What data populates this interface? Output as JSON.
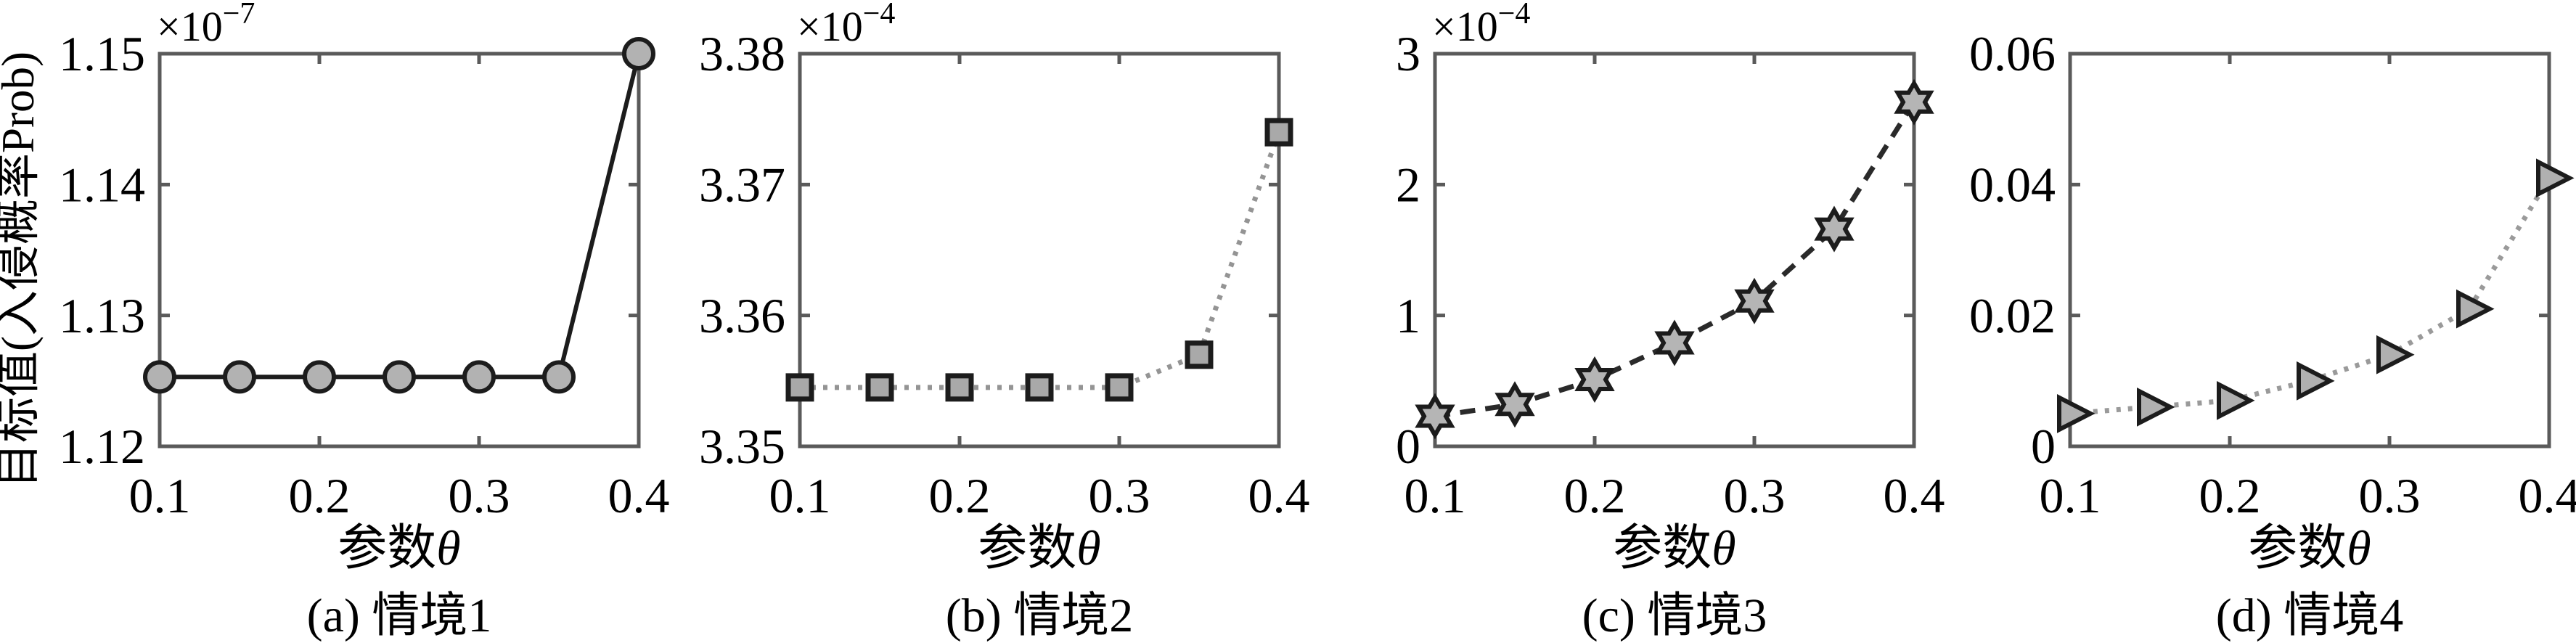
{
  "figure": {
    "background": "#ffffff",
    "y_axis_label": "目标值(入侵概率Prob)",
    "x_axis_label": "参数θ",
    "box_color": "#5a5a5a",
    "text_color": "#000000"
  },
  "chart_data": [
    {
      "type": "line",
      "caption": "(a) 情境1",
      "xlabel": "参数θ",
      "ylabel": "目标值(入侵概率Prob)",
      "exponent_multiplier": "×10",
      "exponent_power": "−7",
      "x": [
        0.1,
        0.15,
        0.2,
        0.25,
        0.3,
        0.35,
        0.4
      ],
      "y": [
        1.1253,
        1.1253,
        1.1253,
        1.1253,
        1.1253,
        1.1253,
        1.15
      ],
      "xlim": [
        0.1,
        0.4
      ],
      "ylim": [
        1.12,
        1.15
      ],
      "xtick_values": [
        0.1,
        0.2,
        0.3,
        0.4
      ],
      "xtick_labels": [
        "0.1",
        "0.2",
        "0.3",
        "0.4"
      ],
      "ytick_values": [
        1.12,
        1.13,
        1.14,
        1.15
      ],
      "ytick_labels": [
        "1.12",
        "1.13",
        "1.14",
        "1.15"
      ],
      "marker": "circle",
      "line_style": "solid",
      "line_color": "#1c1c1c",
      "marker_fill": "#b2b2b2",
      "marker_edge": "#1c1c1c"
    },
    {
      "type": "line",
      "caption": "(b) 情境2",
      "xlabel": "参数θ",
      "exponent_multiplier": "×10",
      "exponent_power": "−4",
      "x": [
        0.1,
        0.15,
        0.2,
        0.25,
        0.3,
        0.35,
        0.4
      ],
      "y": [
        3.3545,
        3.3545,
        3.3545,
        3.3545,
        3.3545,
        3.357,
        3.374
      ],
      "xlim": [
        0.1,
        0.4
      ],
      "ylim": [
        3.35,
        3.38
      ],
      "xtick_values": [
        0.1,
        0.2,
        0.3,
        0.4
      ],
      "xtick_labels": [
        "0.1",
        "0.2",
        "0.3",
        "0.4"
      ],
      "ytick_values": [
        3.35,
        3.36,
        3.37,
        3.38
      ],
      "ytick_labels": [
        "3.35",
        "3.36",
        "3.37",
        "3.38"
      ],
      "marker": "square",
      "line_style": "dotted",
      "line_color": "#949494",
      "marker_fill": "#a9a9a9",
      "marker_edge": "#1c1c1c"
    },
    {
      "type": "line",
      "caption": "(c) 情境3",
      "xlabel": "参数θ",
      "exponent_multiplier": "×10",
      "exponent_power": "−4",
      "x": [
        0.1,
        0.15,
        0.2,
        0.25,
        0.3,
        0.35,
        0.4
      ],
      "y": [
        0.23,
        0.32,
        0.51,
        0.79,
        1.11,
        1.66,
        2.63
      ],
      "xlim": [
        0.1,
        0.4
      ],
      "ylim": [
        0,
        3
      ],
      "xtick_values": [
        0.1,
        0.2,
        0.3,
        0.4
      ],
      "xtick_labels": [
        "0.1",
        "0.2",
        "0.3",
        "0.4"
      ],
      "ytick_values": [
        0,
        1,
        2,
        3
      ],
      "ytick_labels": [
        "0",
        "1",
        "2",
        "3"
      ],
      "marker": "hexagram",
      "line_style": "dashed",
      "line_color": "#2a2a2a",
      "marker_fill": "#b5b5b5",
      "marker_edge": "#1c1c1c"
    },
    {
      "type": "line",
      "caption": "(d) 情境4",
      "xlabel": "参数θ",
      "exponent_multiplier": null,
      "exponent_power": null,
      "x": [
        0.1,
        0.15,
        0.2,
        0.25,
        0.3,
        0.35,
        0.4
      ],
      "y": [
        0.005,
        0.006,
        0.007,
        0.01,
        0.014,
        0.021,
        0.041
      ],
      "xlim": [
        0.1,
        0.4
      ],
      "ylim": [
        0,
        0.06
      ],
      "xtick_values": [
        0.1,
        0.2,
        0.3,
        0.4
      ],
      "xtick_labels": [
        "0.1",
        "0.2",
        "0.3",
        "0.4"
      ],
      "ytick_values": [
        0,
        0.02,
        0.04,
        0.06
      ],
      "ytick_labels": [
        "0",
        "0.02",
        "0.04",
        "0.06"
      ],
      "marker": "triangle-right",
      "line_style": "dotted",
      "line_color": "#9a9a9a",
      "marker_fill": "#b0b0b0",
      "marker_edge": "#1c1c1c"
    }
  ]
}
